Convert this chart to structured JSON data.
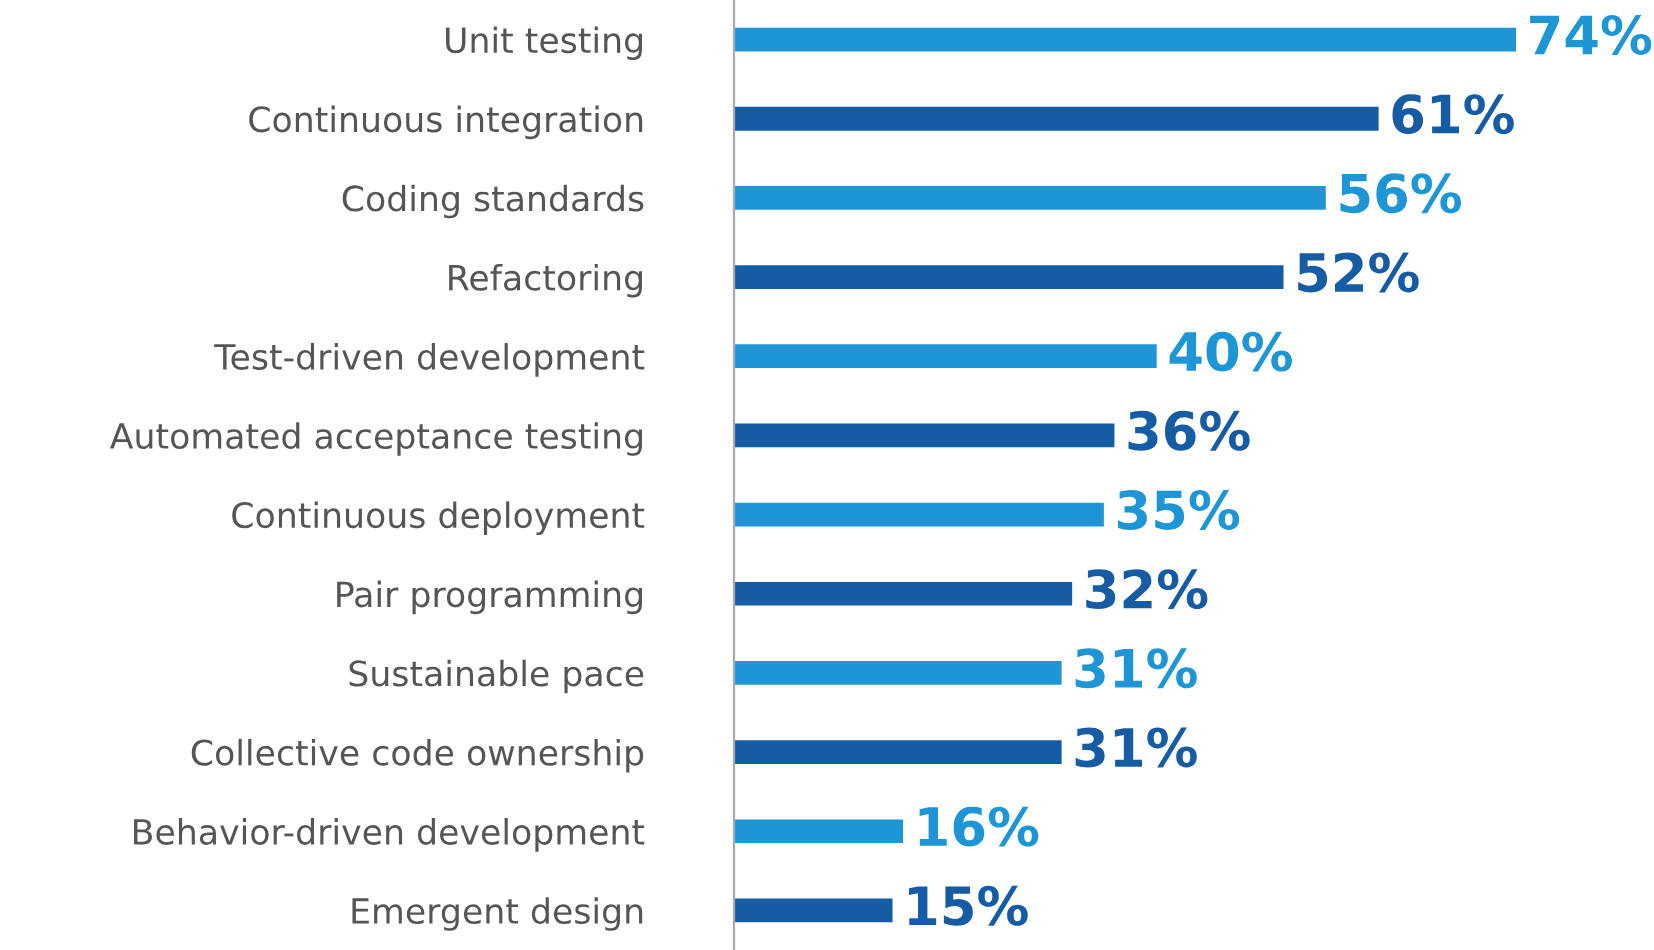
{
  "chart_data": {
    "type": "bar",
    "orientation": "horizontal",
    "categories": [
      "Unit testing",
      "Continuous integration",
      "Coding standards",
      "Refactoring",
      "Test-driven development",
      "Automated acceptance testing",
      "Continuous deployment",
      "Pair programming",
      "Sustainable pace",
      "Collective code ownership",
      "Behavior-driven development",
      "Emergent design"
    ],
    "values": [
      74,
      61,
      56,
      52,
      40,
      36,
      35,
      32,
      31,
      31,
      16,
      15
    ],
    "colors": [
      "#1e96d6",
      "#155ca5",
      "#1e96d6",
      "#155ca5",
      "#1e96d6",
      "#155ca5",
      "#1e96d6",
      "#155ca5",
      "#1e96d6",
      "#155ca5",
      "#1e96d6",
      "#155ca5"
    ],
    "value_labels": [
      "74%",
      "61%",
      "56%",
      "52%",
      "40%",
      "36%",
      "35%",
      "32%",
      "31%",
      "31%",
      "16%",
      "15%"
    ],
    "grid": false,
    "legend": false
  }
}
